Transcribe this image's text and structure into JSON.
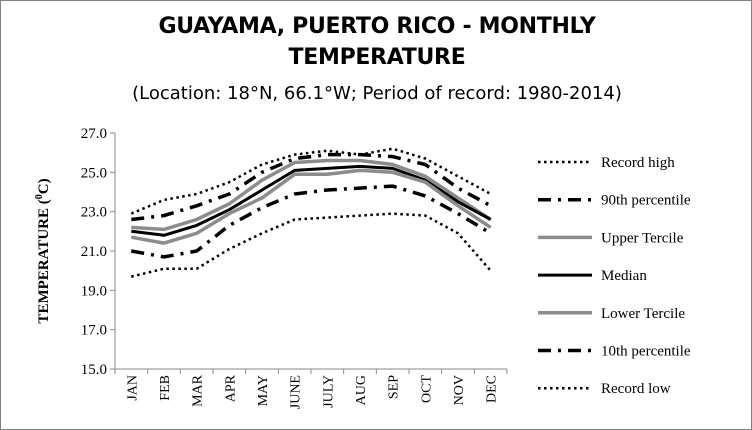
{
  "chart_data": {
    "type": "line",
    "title_line1": "GUAYAMA, PUERTO RICO - MONTHLY",
    "title_line2": "TEMPERATURE",
    "subtitle": "(Location: 18°N, 66.1°W; Period of record: 1980-2014)",
    "ylabel": "TEMPERATURE (",
    "ylabel_sup": "0",
    "ylabel_unit": "C)",
    "ylim": [
      15.0,
      27.0
    ],
    "yticks": [
      "15.0",
      "17.0",
      "19.0",
      "21.0",
      "23.0",
      "25.0",
      "27.0"
    ],
    "categories": [
      "JAN",
      "FEB",
      "MAR",
      "APR",
      "MAY",
      "JUNE",
      "JULY",
      "AUG",
      "SEP",
      "OCT",
      "NOV",
      "DEC"
    ],
    "grid": false,
    "legend_position": "right",
    "series": [
      {
        "name": "Record high",
        "style": "dotted",
        "color": "#000000",
        "values": [
          22.9,
          23.6,
          23.9,
          24.5,
          25.4,
          25.9,
          26.1,
          25.9,
          26.2,
          25.7,
          24.8,
          23.9
        ]
      },
      {
        "name": "90th percentile",
        "style": "dashdot",
        "color": "#000000",
        "values": [
          22.6,
          22.8,
          23.3,
          23.9,
          25.0,
          25.7,
          25.9,
          25.9,
          25.8,
          25.4,
          24.2,
          23.3
        ]
      },
      {
        "name": "Upper Tercile",
        "style": "solid-gray",
        "color": "#8c8c8c",
        "values": [
          22.2,
          22.1,
          22.6,
          23.4,
          24.6,
          25.5,
          25.6,
          25.6,
          25.4,
          24.8,
          23.7,
          22.6
        ]
      },
      {
        "name": "Median",
        "style": "solid",
        "color": "#000000",
        "values": [
          22.0,
          21.8,
          22.3,
          23.1,
          24.1,
          25.1,
          25.2,
          25.3,
          25.2,
          24.6,
          23.5,
          22.6
        ]
      },
      {
        "name": "Lower Tercile",
        "style": "solid-gray",
        "color": "#8c8c8c",
        "values": [
          21.7,
          21.4,
          21.9,
          22.9,
          23.7,
          24.9,
          24.9,
          25.1,
          25.0,
          24.5,
          23.3,
          22.2
        ]
      },
      {
        "name": "10th percentile",
        "style": "dashdot",
        "color": "#000000",
        "values": [
          21.0,
          20.7,
          21.0,
          22.3,
          23.2,
          23.9,
          24.1,
          24.2,
          24.3,
          23.8,
          22.9,
          21.9
        ]
      },
      {
        "name": "Record low",
        "style": "dotted",
        "color": "#000000",
        "values": [
          19.7,
          20.1,
          20.1,
          21.1,
          21.9,
          22.6,
          22.7,
          22.8,
          22.9,
          22.8,
          21.9,
          20.0
        ]
      }
    ]
  }
}
